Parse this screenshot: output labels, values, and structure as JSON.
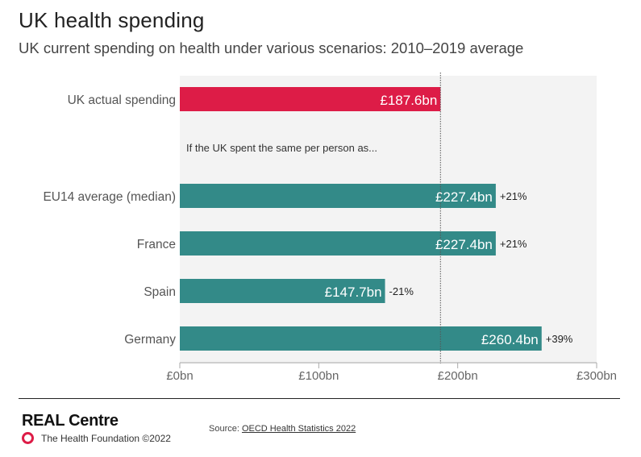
{
  "header": {
    "title": "UK health spending",
    "subtitle": "UK current spending on health under various scenarios: 2010–2019 average"
  },
  "chart_data": {
    "type": "bar",
    "orientation": "horizontal",
    "title": "UK health spending",
    "subtitle": "UK current spending on health under various scenarios: 2010–2019 average",
    "xlabel": "",
    "ylabel": "",
    "xlim": [
      0,
      300
    ],
    "x_ticks": [
      0,
      100,
      200,
      300
    ],
    "x_tick_labels": [
      "£0bn",
      "£100bn",
      "£200bn",
      "£300bn"
    ],
    "reference_line": {
      "value": 187.6,
      "style": "dotted",
      "label": "UK actual spending"
    },
    "annotation": "If the UK spent the same per person as...",
    "categories": [
      "UK actual spending",
      "EU14 average (median)",
      "France",
      "Spain",
      "Germany"
    ],
    "values": [
      187.6,
      227.4,
      227.4,
      147.7,
      260.4
    ],
    "value_labels": [
      "£187.6bn",
      "£227.4bn",
      "£227.4bn",
      "£147.7bn",
      "£260.4bn"
    ],
    "change_labels": [
      "",
      "+21%",
      "+21%",
      "-21%",
      "+39%"
    ],
    "colors": {
      "actual": "#dd1c47",
      "scenario": "#338a88",
      "plot_background": "#f3f3f3",
      "axis": "#aaaaaa"
    }
  },
  "footer": {
    "brand": "REAL Centre",
    "organisation": "The Health Foundation ©2022",
    "source_prefix": "Source: ",
    "source_link": "OECD Health Statistics 2022"
  }
}
